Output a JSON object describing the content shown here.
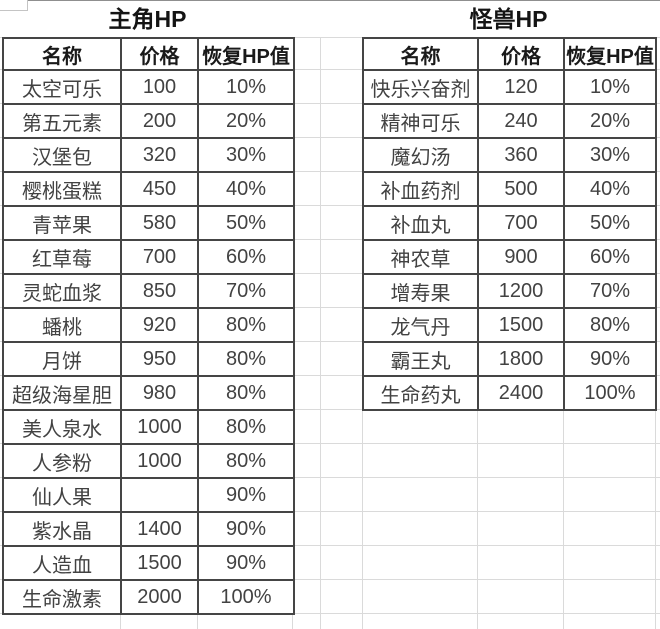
{
  "colors": {
    "table_border": "#454545",
    "faint_gridline": "#dadada",
    "header_text": "#1a1a1a",
    "cell_text": "#424242",
    "title_text": "#141414",
    "background": "#ffffff"
  },
  "tables": [
    {
      "id": "hero-hp",
      "title": "主角HP",
      "columns": [
        "名称",
        "价格",
        "恢复HP值"
      ],
      "rows": [
        [
          "太空可乐",
          "100",
          "10%"
        ],
        [
          "第五元素",
          "200",
          "20%"
        ],
        [
          "汉堡包",
          "320",
          "30%"
        ],
        [
          "樱桃蛋糕",
          "450",
          "40%"
        ],
        [
          "青苹果",
          "580",
          "50%"
        ],
        [
          "红草莓",
          "700",
          "60%"
        ],
        [
          "灵蛇血浆",
          "850",
          "70%"
        ],
        [
          "蟠桃",
          "920",
          "80%"
        ],
        [
          "月饼",
          "950",
          "80%"
        ],
        [
          "超级海星胆",
          "980",
          "80%"
        ],
        [
          "美人泉水",
          "1000",
          "80%"
        ],
        [
          "人参粉",
          "1000",
          "80%"
        ],
        [
          "仙人果",
          "",
          "90%"
        ],
        [
          "紫水晶",
          "1400",
          "90%"
        ],
        [
          "人造血",
          "1500",
          "90%"
        ],
        [
          "生命激素",
          "2000",
          "100%"
        ]
      ]
    },
    {
      "id": "monster-hp",
      "title": "怪兽HP",
      "columns": [
        "名称",
        "价格",
        "恢复HP值"
      ],
      "rows": [
        [
          "快乐兴奋剂",
          "120",
          "10%"
        ],
        [
          "精神可乐",
          "240",
          "20%"
        ],
        [
          "魔幻汤",
          "360",
          "30%"
        ],
        [
          "补血药剂",
          "500",
          "40%"
        ],
        [
          "补血丸",
          "700",
          "50%"
        ],
        [
          "神农草",
          "900",
          "60%"
        ],
        [
          "增寿果",
          "1200",
          "70%"
        ],
        [
          "龙气丹",
          "1500",
          "80%"
        ],
        [
          "霸王丸",
          "1800",
          "90%"
        ],
        [
          "生命药丸",
          "2400",
          "100%"
        ]
      ]
    }
  ],
  "chart_data": [
    {
      "type": "table",
      "title": "主角HP",
      "columns": [
        "名称",
        "价格",
        "恢复HP值"
      ],
      "rows": [
        [
          "太空可乐",
          100,
          "10%"
        ],
        [
          "第五元素",
          200,
          "20%"
        ],
        [
          "汉堡包",
          320,
          "30%"
        ],
        [
          "樱桃蛋糕",
          450,
          "40%"
        ],
        [
          "青苹果",
          580,
          "50%"
        ],
        [
          "红草莓",
          700,
          "60%"
        ],
        [
          "灵蛇血浆",
          850,
          "70%"
        ],
        [
          "蟠桃",
          920,
          "80%"
        ],
        [
          "月饼",
          950,
          "80%"
        ],
        [
          "超级海星胆",
          980,
          "80%"
        ],
        [
          "美人泉水",
          1000,
          "80%"
        ],
        [
          "人参粉",
          1000,
          "80%"
        ],
        [
          "仙人果",
          null,
          "90%"
        ],
        [
          "紫水晶",
          1400,
          "90%"
        ],
        [
          "人造血",
          1500,
          "90%"
        ],
        [
          "生命激素",
          2000,
          "100%"
        ]
      ]
    },
    {
      "type": "table",
      "title": "怪兽HP",
      "columns": [
        "名称",
        "价格",
        "恢复HP值"
      ],
      "rows": [
        [
          "快乐兴奋剂",
          120,
          "10%"
        ],
        [
          "精神可乐",
          240,
          "20%"
        ],
        [
          "魔幻汤",
          360,
          "30%"
        ],
        [
          "补血药剂",
          500,
          "40%"
        ],
        [
          "补血丸",
          700,
          "50%"
        ],
        [
          "神农草",
          900,
          "60%"
        ],
        [
          "增寿果",
          1200,
          "70%"
        ],
        [
          "龙气丹",
          1500,
          "80%"
        ],
        [
          "霸王丸",
          1800,
          "90%"
        ],
        [
          "生命药丸",
          2400,
          "100%"
        ]
      ]
    }
  ]
}
